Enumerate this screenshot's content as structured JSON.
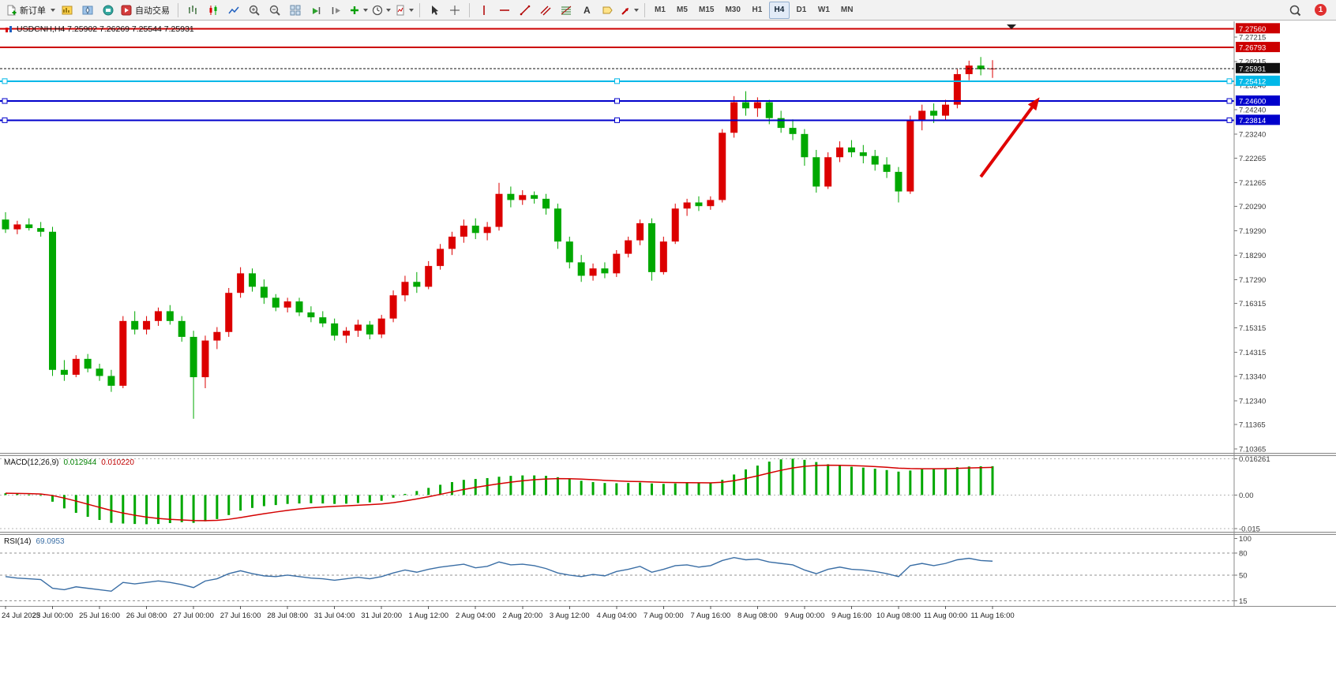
{
  "toolbar": {
    "new_order": "新订单",
    "autotrading": "自动交易",
    "timeframes": [
      "M1",
      "M5",
      "M15",
      "M30",
      "H1",
      "H4",
      "D1",
      "W1",
      "MN"
    ],
    "active_timeframe": "H4",
    "notification_count": "1"
  },
  "chart": {
    "title": "USDCNH,H4 7.25902 7.26269 7.25544 7.25931"
  },
  "chart_data": {
    "type": "candlestick",
    "symbol": "USDCNH",
    "timeframe": "H4",
    "last_ohlc": {
      "open": 7.25902,
      "high": 7.26269,
      "low": 7.25544,
      "close": 7.25931
    },
    "current_price": 7.25931,
    "colors": {
      "up": "#dc0000",
      "down": "#00a800",
      "bid": "#111111",
      "macd_hist": "#00a800",
      "macd_signal": "#d40000",
      "rsi": "#3a6ea5",
      "arrow": "#e00000"
    },
    "price_axis_labels": [
      7.27215,
      7.26215,
      7.2524,
      7.2424,
      7.2324,
      7.22265,
      7.21265,
      7.2029,
      7.1929,
      7.1829,
      7.1729,
      7.16315,
      7.15315,
      7.14315,
      7.1334,
      7.1234,
      7.11365,
      7.10365
    ],
    "hlines": [
      {
        "price": 7.2756,
        "color": "#cc0000",
        "handles": false
      },
      {
        "price": 7.26793,
        "color": "#cc0000",
        "handles": false
      },
      {
        "price": 7.25412,
        "color": "#00b8e8",
        "handles": true
      },
      {
        "price": 7.246,
        "color": "#0000cc",
        "handles": true
      },
      {
        "price": 7.23814,
        "color": "#0000cc",
        "handles": true
      }
    ],
    "time_labels": [
      "24 Jul 2023",
      "25 Jul 00:00",
      "25 Jul 16:00",
      "26 Jul 08:00",
      "27 Jul 00:00",
      "27 Jul 16:00",
      "28 Jul 08:00",
      "31 Jul 04:00",
      "31 Jul 20:00",
      "1 Aug 12:00",
      "2 Aug 04:00",
      "2 Aug 20:00",
      "3 Aug 12:00",
      "4 Aug 04:00",
      "7 Aug 00:00",
      "7 Aug 16:00",
      "8 Aug 08:00",
      "9 Aug 00:00",
      "9 Aug 16:00",
      "10 Aug 08:00",
      "11 Aug 00:00",
      "11 Aug 16:00"
    ],
    "candles_per_label": 4,
    "candles": [
      [
        7.1975,
        7.2005,
        7.192,
        7.1935
      ],
      [
        7.1935,
        7.197,
        7.1915,
        7.1955
      ],
      [
        7.1955,
        7.198,
        7.193,
        7.194
      ],
      [
        7.194,
        7.1965,
        7.1905,
        7.1925
      ],
      [
        7.1925,
        7.1945,
        7.1335,
        7.136
      ],
      [
        7.136,
        7.14,
        7.1315,
        7.134
      ],
      [
        7.134,
        7.142,
        7.133,
        7.1405
      ],
      [
        7.1405,
        7.1425,
        7.135,
        7.1365
      ],
      [
        7.1365,
        7.1385,
        7.1315,
        7.1335
      ],
      [
        7.1335,
        7.136,
        7.127,
        7.1295
      ],
      [
        7.1295,
        7.158,
        7.1285,
        7.156
      ],
      [
        7.156,
        7.16,
        7.1505,
        7.1525
      ],
      [
        7.1525,
        7.158,
        7.1505,
        7.156
      ],
      [
        7.156,
        7.1615,
        7.154,
        7.16
      ],
      [
        7.16,
        7.1625,
        7.1545,
        7.156
      ],
      [
        7.156,
        7.158,
        7.1475,
        7.1495
      ],
      [
        7.1495,
        7.152,
        7.116,
        7.133
      ],
      [
        7.133,
        7.15,
        7.1285,
        7.148
      ],
      [
        7.148,
        7.1535,
        7.1445,
        7.1515
      ],
      [
        7.1515,
        7.1695,
        7.1495,
        7.1675
      ],
      [
        7.1675,
        7.178,
        7.1655,
        7.1755
      ],
      [
        7.1755,
        7.1775,
        7.168,
        7.17
      ],
      [
        7.17,
        7.173,
        7.163,
        7.1655
      ],
      [
        7.1655,
        7.167,
        7.16,
        7.1615
      ],
      [
        7.1615,
        7.1655,
        7.1595,
        7.164
      ],
      [
        7.164,
        7.1655,
        7.158,
        7.1595
      ],
      [
        7.1595,
        7.162,
        7.1555,
        7.1575
      ],
      [
        7.1575,
        7.16,
        7.1535,
        7.155
      ],
      [
        7.155,
        7.157,
        7.148,
        7.15
      ],
      [
        7.15,
        7.1535,
        7.147,
        7.152
      ],
      [
        7.152,
        7.1565,
        7.1495,
        7.1545
      ],
      [
        7.1545,
        7.156,
        7.1485,
        7.1505
      ],
      [
        7.1505,
        7.1585,
        7.149,
        7.157
      ],
      [
        7.157,
        7.1685,
        7.1555,
        7.1665
      ],
      [
        7.1665,
        7.1745,
        7.164,
        7.172
      ],
      [
        7.172,
        7.176,
        7.1675,
        7.17
      ],
      [
        7.17,
        7.1805,
        7.169,
        7.1785
      ],
      [
        7.1785,
        7.1875,
        7.177,
        7.1855
      ],
      [
        7.1855,
        7.1925,
        7.183,
        7.1905
      ],
      [
        7.1905,
        7.1975,
        7.188,
        7.195
      ],
      [
        7.195,
        7.198,
        7.1895,
        7.192
      ],
      [
        7.192,
        7.1965,
        7.189,
        7.1945
      ],
      [
        7.1945,
        7.2125,
        7.193,
        7.208
      ],
      [
        7.208,
        7.211,
        7.2025,
        7.2055
      ],
      [
        7.2055,
        7.2095,
        7.2035,
        7.2075
      ],
      [
        7.2075,
        7.209,
        7.204,
        7.206
      ],
      [
        7.206,
        7.208,
        7.1995,
        7.202
      ],
      [
        7.202,
        7.204,
        7.1855,
        7.1885
      ],
      [
        7.1885,
        7.1905,
        7.1775,
        7.18
      ],
      [
        7.18,
        7.183,
        7.172,
        7.1745
      ],
      [
        7.1745,
        7.1795,
        7.1725,
        7.1775
      ],
      [
        7.1775,
        7.18,
        7.1735,
        7.1755
      ],
      [
        7.1755,
        7.185,
        7.174,
        7.1835
      ],
      [
        7.1835,
        7.1905,
        7.182,
        7.189
      ],
      [
        7.189,
        7.1975,
        7.187,
        7.196
      ],
      [
        7.196,
        7.198,
        7.1725,
        7.176
      ],
      [
        7.176,
        7.1905,
        7.175,
        7.1885
      ],
      [
        7.1885,
        7.204,
        7.1875,
        7.202
      ],
      [
        7.202,
        7.206,
        7.199,
        7.2045
      ],
      [
        7.2045,
        7.207,
        7.201,
        7.203
      ],
      [
        7.203,
        7.207,
        7.2015,
        7.2055
      ],
      [
        7.2055,
        7.2345,
        7.2045,
        7.233
      ],
      [
        7.233,
        7.248,
        7.231,
        7.2455
      ],
      [
        7.2455,
        7.25,
        7.24,
        7.243
      ],
      [
        7.243,
        7.2475,
        7.2395,
        7.2455
      ],
      [
        7.2455,
        7.2465,
        7.2365,
        7.239
      ],
      [
        7.239,
        7.242,
        7.233,
        7.235
      ],
      [
        7.235,
        7.2385,
        7.23,
        7.2325
      ],
      [
        7.2325,
        7.2345,
        7.2195,
        7.223
      ],
      [
        7.223,
        7.226,
        7.2085,
        7.211
      ],
      [
        7.211,
        7.225,
        7.21,
        7.223
      ],
      [
        7.223,
        7.2295,
        7.221,
        7.227
      ],
      [
        7.227,
        7.23,
        7.223,
        7.225
      ],
      [
        7.225,
        7.228,
        7.2205,
        7.2235
      ],
      [
        7.2235,
        7.226,
        7.2175,
        7.22
      ],
      [
        7.22,
        7.223,
        7.2145,
        7.217
      ],
      [
        7.217,
        7.219,
        7.2045,
        7.209
      ],
      [
        7.209,
        7.24,
        7.208,
        7.238
      ],
      [
        7.238,
        7.2445,
        7.234,
        7.242
      ],
      [
        7.242,
        7.245,
        7.237,
        7.24
      ],
      [
        7.24,
        7.2465,
        7.238,
        7.2445
      ],
      [
        7.2445,
        7.259,
        7.243,
        7.257
      ],
      [
        7.257,
        7.2625,
        7.2545,
        7.2605
      ],
      [
        7.2605,
        7.264,
        7.2565,
        7.259
      ],
      [
        7.25902,
        7.26269,
        7.25544,
        7.25931
      ]
    ],
    "macd": {
      "label": "MACD(12,26,9)",
      "value_main": "0.012944",
      "value_signal": "0.010220",
      "axis": [
        "0.016261",
        "0.00",
        "-0.015"
      ],
      "axis_values": [
        0.016261,
        0,
        -0.015
      ],
      "range": [
        -0.0165,
        0.0175
      ],
      "histogram": [
        0.0008,
        0.0005,
        0.0002,
        -0.0002,
        -0.003,
        -0.006,
        -0.008,
        -0.0098,
        -0.0112,
        -0.0125,
        -0.0128,
        -0.013,
        -0.0131,
        -0.013,
        -0.0126,
        -0.0122,
        -0.0125,
        -0.0118,
        -0.0108,
        -0.009,
        -0.007,
        -0.0058,
        -0.005,
        -0.0045,
        -0.004,
        -0.0038,
        -0.0037,
        -0.0038,
        -0.004,
        -0.0039,
        -0.0036,
        -0.0033,
        -0.0026,
        -0.0012,
        0.0005,
        0.0018,
        0.0032,
        0.0046,
        0.0058,
        0.0068,
        0.0072,
        0.0076,
        0.0082,
        0.0086,
        0.0088,
        0.0088,
        0.0086,
        0.008,
        0.0072,
        0.0064,
        0.0058,
        0.0054,
        0.0053,
        0.0054,
        0.0056,
        0.0052,
        0.005,
        0.0052,
        0.0054,
        0.0054,
        0.0053,
        0.0068,
        0.0092,
        0.0115,
        0.0132,
        0.015,
        0.016,
        0.0163,
        0.0158,
        0.0148,
        0.0138,
        0.0132,
        0.0127,
        0.0123,
        0.0118,
        0.0112,
        0.0105,
        0.011,
        0.0116,
        0.0118,
        0.012,
        0.0125,
        0.0128,
        0.0129,
        0.012944
      ]
    },
    "rsi": {
      "label": "RSI(14)",
      "value": "69.0953",
      "axis_labels": [
        100,
        80,
        50,
        15
      ],
      "levels": [
        80,
        50,
        15
      ],
      "range": [
        10,
        105
      ],
      "values": [
        48,
        46,
        45,
        44,
        32,
        30,
        34,
        32,
        30,
        28,
        40,
        38,
        40,
        42,
        40,
        37,
        33,
        42,
        45,
        52,
        56,
        52,
        49,
        48,
        50,
        48,
        46,
        45,
        43,
        45,
        47,
        45,
        48,
        53,
        57,
        54,
        58,
        61,
        63,
        65,
        60,
        62,
        68,
        64,
        65,
        63,
        59,
        53,
        50,
        48,
        51,
        49,
        55,
        58,
        62,
        54,
        58,
        63,
        64,
        61,
        63,
        70,
        74,
        71,
        72,
        68,
        66,
        64,
        57,
        52,
        58,
        61,
        58,
        57,
        55,
        52,
        48,
        63,
        66,
        63,
        66,
        71,
        73,
        70,
        69.0953
      ]
    },
    "annotation_arrow": {
      "from_index": 83,
      "from_price": 7.215,
      "to_index": 88,
      "to_price": 7.2475
    }
  }
}
